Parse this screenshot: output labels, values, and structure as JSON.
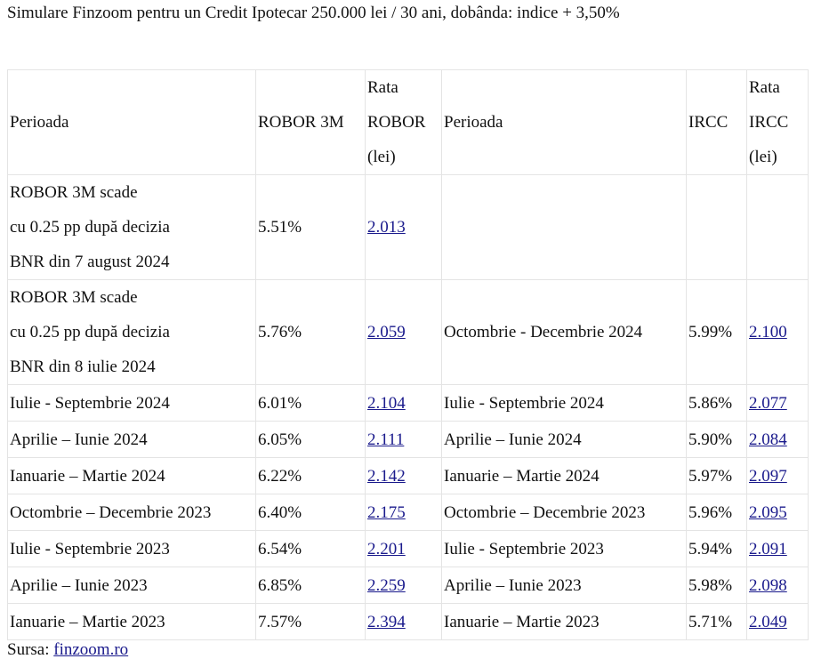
{
  "title": "Simulare Finzoom pentru un Credit Ipotecar 250.000 lei / 30 ani, dobânda: indice + 3,50%",
  "table": {
    "header": [
      [
        "Perioada"
      ],
      [
        "ROBOR 3M"
      ],
      [
        "Rata",
        "ROBOR",
        "(lei)"
      ],
      [
        "Perioada"
      ],
      [
        "IRCC"
      ],
      [
        "Rata",
        "IRCC",
        "(lei)"
      ]
    ],
    "rows": [
      [
        [
          "ROBOR 3M  scade",
          "cu 0.25 pp după decizia",
          "BNR din 7 august 2024"
        ],
        "5.51%",
        "2.013",
        null,
        null,
        null
      ],
      [
        [
          "ROBOR 3M scade",
          "cu 0.25 pp după decizia",
          "BNR din 8 iulie 2024"
        ],
        "5.76%",
        "2.059",
        "Octombrie - Decembrie 2024",
        "5.99%",
        "2.100"
      ],
      [
        "Iulie - Septembrie 2024",
        "6.01%",
        "2.104",
        "Iulie - Septembrie 2024",
        "5.86%",
        "2.077"
      ],
      [
        "Aprilie – Iunie 2024",
        "6.05%",
        "2.111",
        "Aprilie – Iunie 2024",
        "5.90%",
        "2.084"
      ],
      [
        "Ianuarie – Martie 2024",
        "6.22%",
        "2.142",
        "Ianuarie – Martie 2024",
        "5.97%",
        "2.097"
      ],
      [
        "Octombrie – Decembrie 2023",
        "6.40%",
        "2.175",
        "Octombrie – Decembrie 2023",
        "5.96%",
        "2.095"
      ],
      [
        "Iulie - Septembrie 2023",
        "6.54%",
        "2.201",
        "Iulie - Septembrie 2023",
        "5.94%",
        "2.091"
      ],
      [
        "Aprilie – Iunie 2023",
        "6.85%",
        "2.259",
        "Aprilie – Iunie 2023",
        "5.98%",
        "2.098"
      ],
      [
        "Ianuarie – Martie 2023",
        "7.57%",
        "2.394",
        "Ianuarie – Martie 2023",
        "5.71%",
        "2.049"
      ]
    ]
  },
  "footer": {
    "label": "Sursa:",
    "link": "finzoom.ro"
  }
}
